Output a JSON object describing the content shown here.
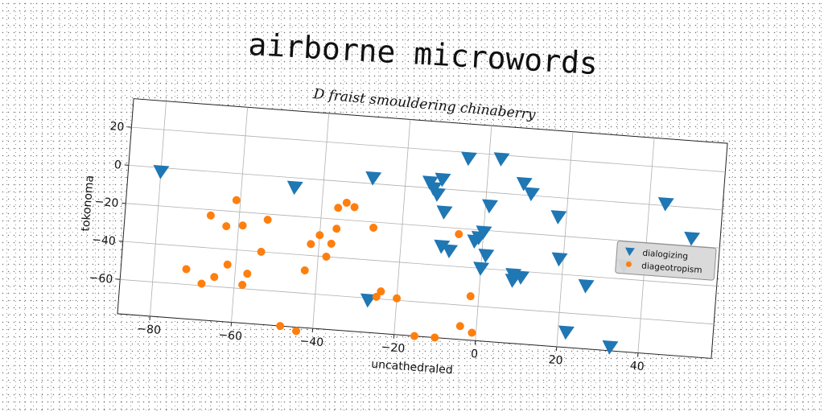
{
  "chart_data": {
    "type": "scatter",
    "title": "airborne microwords",
    "subtitle": "D fraist smouldering chinaberry",
    "xlabel": "uncathedraled",
    "ylabel": "tokonoma",
    "xlim": [
      -88,
      58
    ],
    "ylim": [
      -78,
      35
    ],
    "xticks": [
      -80,
      -60,
      -40,
      -20,
      0,
      20,
      40
    ],
    "yticks": [
      -60,
      -40,
      -20,
      0,
      20
    ],
    "grid": true,
    "legend": "right",
    "series": [
      {
        "name": "dialogizing",
        "marker": "triangle-down",
        "color": "#1f77b4",
        "points": [
          [
            -80,
            -2
          ],
          [
            -47,
            -5
          ],
          [
            -28,
            3
          ],
          [
            -27,
            -61
          ],
          [
            -14,
            3
          ],
          [
            -13,
            0
          ],
          [
            -12,
            -3
          ],
          [
            -11,
            5
          ],
          [
            -10,
            -12
          ],
          [
            -10,
            -30
          ],
          [
            -8,
            -32
          ],
          [
            -5,
            17
          ],
          [
            -2,
            -26
          ],
          [
            -1,
            -24
          ],
          [
            0,
            -21
          ],
          [
            0,
            -40
          ],
          [
            1,
            -7
          ],
          [
            1,
            -33
          ],
          [
            3,
            18
          ],
          [
            8,
            -42
          ],
          [
            8,
            -45
          ],
          [
            9,
            6
          ],
          [
            10,
            -43
          ],
          [
            11,
            1
          ],
          [
            18,
            -10
          ],
          [
            19,
            -32
          ],
          [
            22,
            -70
          ],
          [
            26,
            -45
          ],
          [
            33,
            -76
          ],
          [
            35,
            -33
          ],
          [
            44,
            1
          ],
          [
            51,
            -16
          ]
        ]
      },
      {
        "name": "diageotropism",
        "marker": "circle",
        "color": "#ff7f0e",
        "points": [
          [
            -72,
            -52
          ],
          [
            -68,
            -59
          ],
          [
            -67,
            -23
          ],
          [
            -65,
            -55
          ],
          [
            -63,
            -28
          ],
          [
            -62,
            -48
          ],
          [
            -61,
            -14
          ],
          [
            -59,
            -27
          ],
          [
            -58,
            -58
          ],
          [
            -57,
            -52
          ],
          [
            -54,
            -40
          ],
          [
            -53,
            -23
          ],
          [
            -48,
            -78
          ],
          [
            -44,
            -80
          ],
          [
            -43,
            -48
          ],
          [
            -42,
            -34
          ],
          [
            -40,
            -29
          ],
          [
            -38,
            -40
          ],
          [
            -37,
            -33
          ],
          [
            -36,
            -25
          ],
          [
            -36,
            -14
          ],
          [
            -34,
            -11
          ],
          [
            -32,
            -13
          ],
          [
            -27,
            -23
          ],
          [
            -25,
            -59
          ],
          [
            -24,
            -56
          ],
          [
            -20,
            -59
          ],
          [
            -15,
            -78
          ],
          [
            -10,
            -78
          ],
          [
            -4,
            -71
          ],
          [
            -2,
            -55
          ],
          [
            -1,
            -74
          ],
          [
            -6,
            -23
          ]
        ]
      }
    ]
  }
}
